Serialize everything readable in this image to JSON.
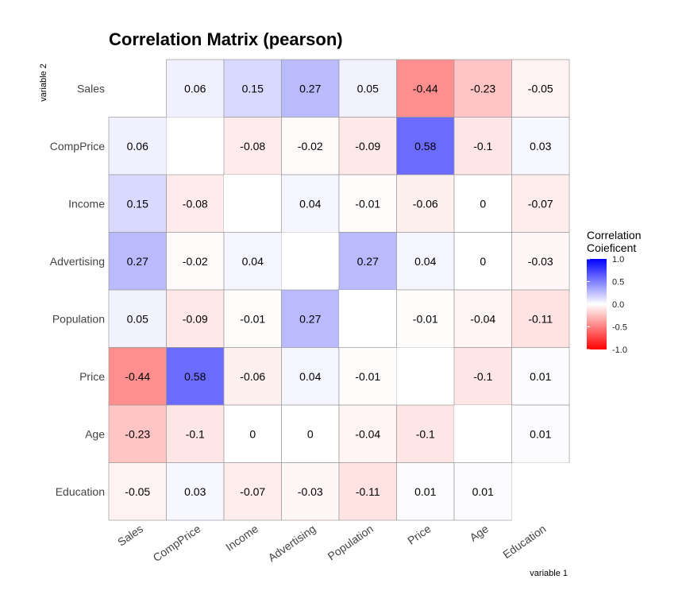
{
  "chart_data": {
    "type": "heatmap",
    "title": "Correlation Matrix (pearson)",
    "xlabel": "variable 1",
    "ylabel": "variable 2",
    "variables": [
      "Sales",
      "CompPrice",
      "Income",
      "Advertising",
      "Population",
      "Price",
      "Age",
      "Education"
    ],
    "value_labels": [
      [
        "",
        "0.06",
        "0.15",
        "0.27",
        "0.05",
        "-0.44",
        "-0.23",
        "-0.05"
      ],
      [
        "0.06",
        "",
        "-0.08",
        "-0.02",
        "-0.09",
        "0.58",
        "-0.1",
        "0.03"
      ],
      [
        "0.15",
        "-0.08",
        "",
        "0.04",
        "-0.01",
        "-0.06",
        "0",
        "-0.07"
      ],
      [
        "0.27",
        "-0.02",
        "0.04",
        "",
        "0.27",
        "0.04",
        "0",
        "-0.03"
      ],
      [
        "0.05",
        "-0.09",
        "-0.01",
        "0.27",
        "",
        "-0.01",
        "-0.04",
        "-0.11"
      ],
      [
        "-0.44",
        "0.58",
        "-0.06",
        "0.04",
        "-0.01",
        "",
        "-0.1",
        "0.01"
      ],
      [
        "-0.23",
        "-0.1",
        "0",
        "0",
        "-0.04",
        "-0.1",
        "",
        "0.01"
      ],
      [
        "-0.05",
        "0.03",
        "-0.07",
        "-0.03",
        "-0.11",
        "0.01",
        "0.01",
        ""
      ]
    ],
    "legend": {
      "title_line1": "Correlation",
      "title_line2": "Coieficent",
      "ticks": [
        "1.0",
        "0.5",
        "0.0",
        "-0.5",
        "-1.0"
      ],
      "range": [
        -1,
        1
      ],
      "high_color": "#0000ff",
      "mid_color": "#ffffff",
      "low_color": "#ff0000",
      "placement": "right"
    }
  }
}
